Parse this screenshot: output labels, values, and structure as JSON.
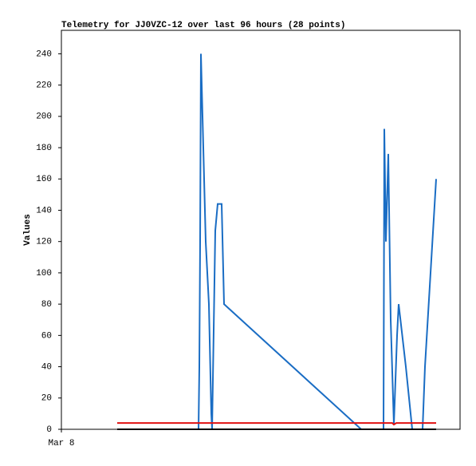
{
  "chart_data": {
    "type": "line",
    "title": "Telemetry for JJ0VZC-12 over last 96 hours (28 points)",
    "y_label": "Values",
    "xlim": [
      0,
      100
    ],
    "xticks": [
      {
        "value": 0,
        "label": "Mar 8"
      }
    ],
    "ylim": [
      0,
      255
    ],
    "yticks": [
      0,
      20,
      40,
      60,
      80,
      100,
      120,
      140,
      160,
      180,
      200,
      220,
      240
    ],
    "grid": false,
    "series": [
      {
        "color": "#1a6dc4",
        "x": [
          34.4,
          34.6,
          34.8,
          35,
          35.4,
          36.2,
          37,
          37.6,
          37.8,
          38.6,
          39.2,
          40.2,
          40.8,
          75.2,
          80.8,
          81,
          81.4,
          82,
          82.6,
          83.4,
          84.2,
          84.6,
          86.4,
          88,
          90.6,
          91.2,
          92.6,
          94
        ],
        "values": [
          0,
          40,
          120,
          240,
          200,
          120,
          80,
          10,
          0,
          127,
          144,
          144,
          80,
          0,
          0,
          192,
          120,
          176,
          70,
          3,
          60,
          80,
          40,
          0,
          0,
          40,
          100,
          160
        ]
      },
      {
        "color": "#e01010",
        "x": [
          14,
          83,
          83.4,
          84,
          94
        ],
        "values": [
          4,
          4,
          3,
          4,
          4
        ]
      },
      {
        "color": "#000000",
        "x": [
          14,
          94
        ],
        "values": [
          0,
          0
        ]
      }
    ]
  }
}
